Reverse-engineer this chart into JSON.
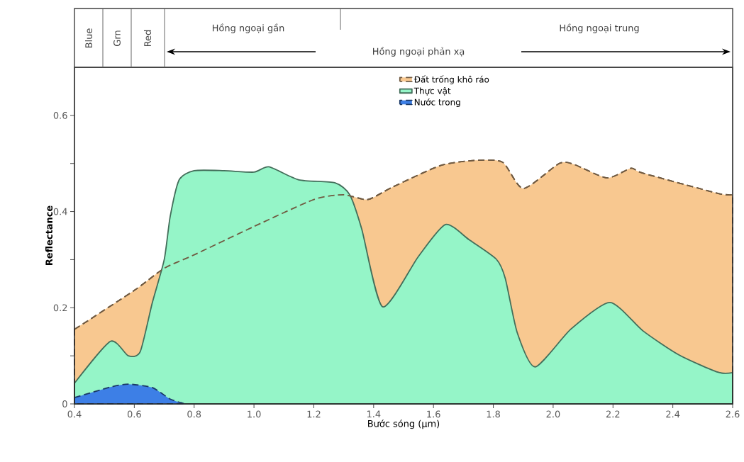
{
  "chart_data": {
    "type": "area",
    "xlabel": "Bước sóng (µm)",
    "ylabel": "Reflectance",
    "xlim": [
      0.4,
      2.6
    ],
    "xticks": [
      0.4,
      0.6,
      0.8,
      {
        "value": 1.0,
        "label": "1.0"
      },
      1.2,
      1.4,
      1.6,
      1.8,
      {
        "value": 2.0,
        "label": "2.0"
      },
      2.2,
      2.4,
      2.6
    ],
    "ylim": [
      0,
      0.7
    ],
    "yticks": [
      0,
      {
        "value": 0.1,
        "label": null
      },
      0.2,
      {
        "value": 0.3,
        "label": null
      },
      0.4,
      {
        "value": 0.5,
        "label": null
      },
      0.6
    ],
    "legend": "top",
    "grid": false,
    "annotations": [
      "Blue",
      "Grn",
      "Red",
      "Hồng ngoại gần",
      "Hồng ngoại phản xạ",
      "Hồng ngoại trung"
    ],
    "series": [
      {
        "name": "Đất trống khô ráo",
        "color": "#f8c890",
        "line_style": "dashed",
        "x": [
          0.4,
          0.6,
          0.7,
          0.8,
          1.0,
          1.2,
          1.3,
          1.38,
          1.46,
          1.62,
          1.73,
          1.83,
          1.9,
          2.02,
          2.07,
          2.18,
          2.26,
          2.3,
          2.55,
          2.6
        ],
        "values": [
          0.155,
          0.236,
          0.282,
          0.31,
          0.369,
          0.425,
          0.435,
          0.425,
          0.45,
          0.495,
          0.506,
          0.503,
          0.448,
          0.5,
          0.498,
          0.47,
          0.49,
          0.48,
          0.438,
          0.435
        ]
      },
      {
        "name": "Thực vật",
        "color": "#95f5c8",
        "line_style": "solid",
        "x": [
          0.4,
          0.52,
          0.58,
          0.62,
          0.66,
          0.7,
          0.72,
          0.75,
          0.8,
          0.9,
          1.0,
          1.05,
          1.15,
          1.27,
          1.32,
          1.36,
          1.43,
          1.55,
          1.64,
          1.72,
          1.81,
          1.84,
          1.88,
          1.94,
          2.06,
          2.19,
          2.3,
          2.42,
          2.55,
          2.6
        ],
        "values": [
          0.043,
          0.13,
          0.1,
          0.109,
          0.21,
          0.3,
          0.39,
          0.466,
          0.485,
          0.485,
          0.482,
          0.493,
          0.466,
          0.46,
          0.435,
          0.364,
          0.202,
          0.307,
          0.373,
          0.341,
          0.301,
          0.261,
          0.148,
          0.077,
          0.156,
          0.211,
          0.152,
          0.102,
          0.066,
          0.065
        ]
      },
      {
        "name": "Nước trong",
        "color": "#3d7fe6",
        "line_style": "dashed",
        "x": [
          0.4,
          0.52,
          0.58,
          0.66,
          0.72,
          0.77
        ],
        "values": [
          0.013,
          0.035,
          0.041,
          0.034,
          0.01,
          0
        ]
      }
    ]
  }
}
